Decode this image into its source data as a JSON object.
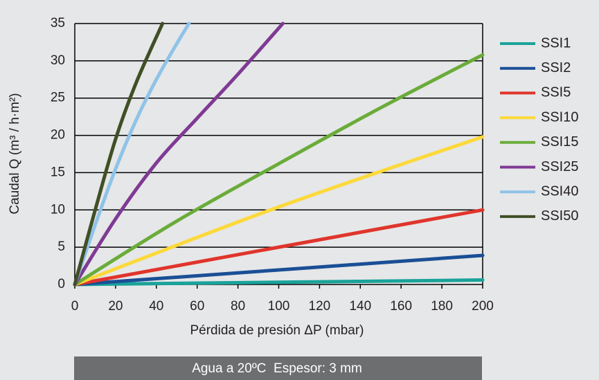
{
  "chart_data": {
    "type": "line",
    "xlabel": "Pérdida de presión ΔP (mbar)",
    "ylabel": "Caudal Q (m³ / h·m²)",
    "annotation": "Agua a 20ºC  Espesor: 3 mm",
    "xlim": [
      0,
      200
    ],
    "xticks": [
      0,
      20,
      40,
      60,
      80,
      100,
      120,
      140,
      160,
      180,
      200
    ],
    "ylim": [
      0,
      35
    ],
    "yticks": [
      0,
      5,
      10,
      15,
      20,
      25,
      30,
      35
    ],
    "grid": true,
    "legend": "right",
    "series": [
      {
        "name": "SSI1",
        "color": "#1aa39a",
        "x": [
          0,
          200
        ],
        "values": [
          0,
          0.6
        ]
      },
      {
        "name": "SSI2",
        "color": "#1a4f96",
        "x": [
          0,
          200
        ],
        "values": [
          0,
          3.9
        ]
      },
      {
        "name": "SSI5",
        "color": "#e0352c",
        "x": [
          0,
          200
        ],
        "values": [
          0,
          10
        ]
      },
      {
        "name": "SSI10",
        "color": "#fcd93a",
        "x": [
          0,
          100,
          200
        ],
        "values": [
          0,
          10.4,
          19.8
        ]
      },
      {
        "name": "SSI15",
        "color": "#6aac3a",
        "x": [
          0,
          50,
          100,
          150,
          200
        ],
        "values": [
          0,
          8.5,
          16.2,
          23.7,
          30.8
        ]
      },
      {
        "name": "SSI25",
        "color": "#7f3a94",
        "x": [
          0,
          20,
          40,
          60,
          80,
          102
        ],
        "values": [
          0,
          8.8,
          16.3,
          22.3,
          28.2,
          35
        ]
      },
      {
        "name": "SSI40",
        "color": "#8fc3e8",
        "x": [
          0,
          10,
          20,
          30,
          40,
          50,
          56
        ],
        "values": [
          0,
          8,
          15.5,
          22,
          27.5,
          32.3,
          35
        ]
      },
      {
        "name": "SSI50",
        "color": "#404f26",
        "x": [
          0,
          10,
          20,
          30,
          43
        ],
        "values": [
          0,
          10,
          19.5,
          27,
          35
        ]
      }
    ]
  }
}
